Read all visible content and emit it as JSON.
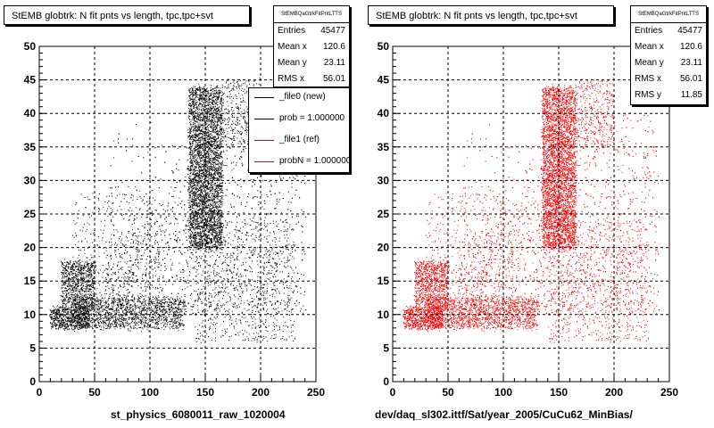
{
  "colors": {
    "frame": "#000000",
    "series_new": "#000000",
    "series_ref": "#ff0000"
  },
  "panels": [
    {
      "title": "StEMB globtrk: N fit pnts vs length, tpc,tpc+svt",
      "stats": {
        "name": "StEMBQaGtrkFitPntLTTS",
        "rows": [
          {
            "key": "Entries",
            "value": "45477"
          },
          {
            "key": "Mean x",
            "value": "120.6"
          },
          {
            "key": "Mean y",
            "value": "23.11"
          },
          {
            "key": "RMS x",
            "value": "56.01"
          }
        ]
      },
      "xlabel": "st_physics_6080011_raw_1020004"
    },
    {
      "title": "StEMB globtrk: N fit pnts vs length, tpc,tpc+svt",
      "stats": {
        "name": "StEMBQaGtrkFitPntLTTS",
        "rows": [
          {
            "key": "Entries",
            "value": "45477"
          },
          {
            "key": "Mean x",
            "value": "120.6"
          },
          {
            "key": "Mean y",
            "value": "23.11"
          },
          {
            "key": "RMS x",
            "value": "56.01"
          },
          {
            "key": "RMS y",
            "value": "11.85"
          }
        ]
      },
      "xlabel": "dev/daq_sl302.ittf/Sat/year_2005/CuCu62_MinBias/"
    }
  ],
  "legend": {
    "entries": [
      {
        "label": "_file0 (new)",
        "color": "#000000"
      },
      {
        "label": "prob = 1.000000",
        "color": "#000000"
      },
      {
        "label": "_file1 (ref)",
        "color": "#ff0000"
      },
      {
        "label": "probN = 1.000000",
        "color": "#ff0000"
      }
    ]
  },
  "chart_data": [
    {
      "type": "scatter",
      "title": "StEMB globtrk: N fit pnts vs length, tpc,tpc+svt",
      "xlabel": "st_physics_6080011_raw_1020004",
      "ylabel": "",
      "xlim": [
        0,
        250
      ],
      "ylim": [
        0,
        50
      ],
      "xticks": [
        0,
        50,
        100,
        150,
        200,
        250
      ],
      "yticks": [
        0,
        5,
        10,
        15,
        20,
        25,
        30,
        35,
        40,
        45,
        50
      ],
      "grid": true,
      "series": [
        {
          "name": "_file0 (new)",
          "color": "#000000"
        }
      ]
    },
    {
      "type": "scatter",
      "title": "StEMB globtrk: N fit pnts vs length, tpc,tpc+svt",
      "xlabel": "dev/daq_sl302.ittf/Sat/year_2005/CuCu62_MinBias/",
      "ylabel": "",
      "xlim": [
        0,
        250
      ],
      "ylim": [
        0,
        50
      ],
      "xticks": [
        0,
        50,
        100,
        150,
        200,
        250
      ],
      "yticks": [
        0,
        5,
        10,
        15,
        20,
        25,
        30,
        35,
        40,
        45,
        50
      ],
      "grid": true,
      "series": [
        {
          "name": "_file1 (ref)",
          "color": "#ff0000"
        }
      ]
    }
  ]
}
